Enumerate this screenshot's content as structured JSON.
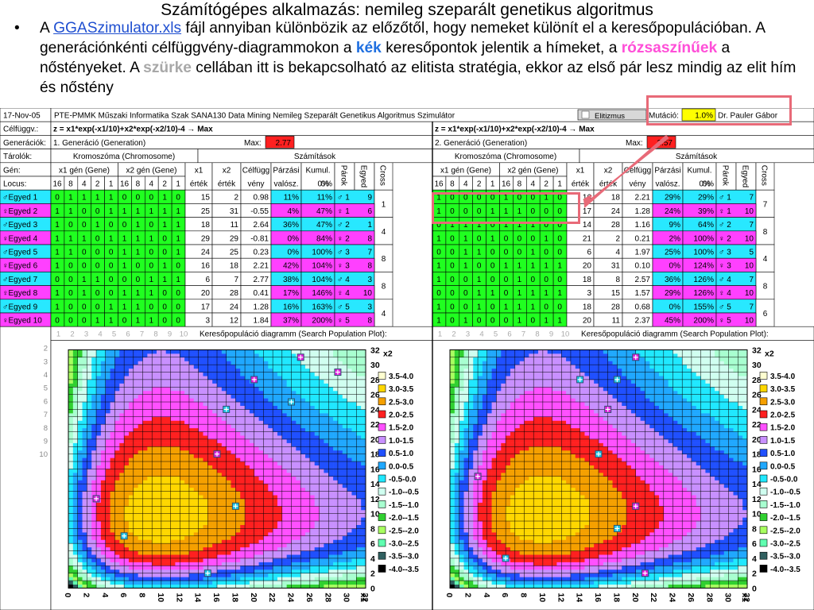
{
  "title": "Számítógépes alkalmazás: nemileg szeparált genetikus algoritmus",
  "bullet": {
    "dot": "•",
    "p1": "A ",
    "link": "GGASzimulator.xls",
    "p2": " fájl annyiban különbözik az előzőtől, hogy nemeket különít el a keresőpopulációban. A generációnkénti célfüggvény-diagrammokon a ",
    "blue": "kék",
    "p3": " keresőpontok jelentik a hímeket, a ",
    "pink": "rózsaszínűek",
    "p4": " a nőstényeket. A ",
    "grey": "szürke",
    "p5": " cellában itt is bekapcsolható az elitista stratégia, ekkor az első pár lesz mindig az elit hím és nőstény"
  },
  "sheet": {
    "date": "17-Nov-05",
    "header": "PTE-PMMK Műszaki Informatika Szak SANA130 Data Mining Nemileg Szeparált Genetikus Algoritmus Szimulátor",
    "elitizmus": "Elitizmus",
    "mutacio_label": "Mutáció:",
    "mutacio_value": "1.0%",
    "author": "Dr. Pauler Gábor",
    "celfuggv_label": "Célfüggv.:",
    "generaciok_label": "Generációk:",
    "tarolok_label": "Tárolók:",
    "gen_label": "Gén:",
    "locus_label": "Locus:",
    "formula": "z = x1*exp(-x1/10)+x2*exp(-x2/10)-4 → Max",
    "max_label": "Max:",
    "kromoszoma": "Kromoszóma (Chromosome)",
    "szamitasok": "Számítások",
    "x1gen": "x1 gén (Gene)",
    "x2gen": "x2 gén (Gene)",
    "cols": {
      "x1": "x1",
      "x2": "x2",
      "ertek": "érték",
      "celf": "Célfügg",
      "veny": "vény",
      "parzasi": "Párzási",
      "valosz": "valósz.",
      "kumul": "Kumul.",
      "kumul0": "0%",
      "parok": "Párok",
      "egyed": "Egyed",
      "cross": "Cross"
    },
    "locus": [
      "16",
      "8",
      "4",
      "2",
      "1",
      "16",
      "8",
      "4",
      "2",
      "1"
    ],
    "individuals": [
      "♂Egyed 1",
      "♀Egyed 2",
      "♂Egyed 3",
      "♀Egyed 4",
      "♂Egyed 5",
      "♀Egyed 6",
      "♂Egyed 7",
      "♀Egyed 8",
      "♂Egyed 9",
      "♀Egyed 10"
    ],
    "gens": [
      {
        "name": "1. Generáció (Generation)",
        "max": "2.77",
        "bits": [
          [
            0,
            1,
            1,
            1,
            1,
            0,
            0,
            0,
            1,
            0
          ],
          [
            1,
            1,
            0,
            0,
            1,
            1,
            1,
            1,
            1,
            1
          ],
          [
            1,
            0,
            0,
            1,
            0,
            0,
            1,
            0,
            1,
            1
          ],
          [
            1,
            1,
            1,
            0,
            1,
            1,
            1,
            1,
            0,
            1
          ],
          [
            1,
            1,
            0,
            0,
            0,
            1,
            1,
            0,
            0,
            1
          ],
          [
            1,
            0,
            0,
            0,
            0,
            1,
            0,
            0,
            1,
            0
          ],
          [
            0,
            0,
            1,
            1,
            0,
            0,
            0,
            1,
            1,
            1
          ],
          [
            1,
            0,
            1,
            0,
            0,
            1,
            1,
            1,
            0,
            0
          ],
          [
            1,
            0,
            0,
            0,
            1,
            1,
            1,
            0,
            0,
            0
          ],
          [
            0,
            0,
            0,
            1,
            1,
            0,
            1,
            1,
            0,
            0
          ]
        ],
        "x1": [
          "15",
          "25",
          "18",
          "29",
          "24",
          "16",
          "6",
          "20",
          "17",
          "3"
        ],
        "x2": [
          "2",
          "31",
          "11",
          "29",
          "25",
          "18",
          "7",
          "28",
          "24",
          "12"
        ],
        "f": [
          "0.98",
          "-0.55",
          "2.64",
          "-0.81",
          "0.23",
          "2.21",
          "2.77",
          "0.41",
          "1.28",
          "1.84"
        ],
        "p": [
          "11%",
          "4%",
          "36%",
          "0%",
          "0%",
          "42%",
          "38%",
          "17%",
          "16%",
          "37%"
        ],
        "k": [
          "11%",
          "47%",
          "47%",
          "84%",
          "100%",
          "104%",
          "104%",
          "146%",
          "163%",
          "200%"
        ],
        "pair": [
          "♂ 1",
          "♀ 1",
          "♂ 2",
          "♀ 2",
          "♂ 3",
          "♀ 3",
          "♂ 4",
          "♀ 4",
          "♂ 5",
          "♀ 5"
        ],
        "eg": [
          "9",
          "6",
          "1",
          "8",
          "7",
          "8",
          "3",
          "10",
          "3",
          "8"
        ],
        "cross": [
          "1",
          "4",
          "8",
          "8",
          "4"
        ]
      },
      {
        "name": "2. Generáció (Generation)",
        "max": "2.57",
        "bits": [
          [
            1,
            0,
            0,
            0,
            0,
            1,
            0,
            0,
            1,
            0
          ],
          [
            1,
            0,
            0,
            0,
            1,
            1,
            1,
            0,
            0,
            0
          ],
          [
            0,
            1,
            1,
            1,
            0,
            1,
            1,
            1,
            0,
            0
          ],
          [
            1,
            0,
            1,
            0,
            1,
            0,
            0,
            0,
            1,
            0
          ],
          [
            0,
            0,
            1,
            1,
            0,
            0,
            0,
            1,
            0,
            0
          ],
          [
            1,
            0,
            1,
            0,
            0,
            1,
            1,
            1,
            1,
            1
          ],
          [
            1,
            0,
            0,
            1,
            0,
            0,
            1,
            0,
            0,
            0
          ],
          [
            0,
            0,
            0,
            1,
            1,
            0,
            1,
            1,
            1,
            1
          ],
          [
            1,
            0,
            0,
            1,
            0,
            1,
            1,
            1,
            0,
            0
          ],
          [
            1,
            0,
            1,
            0,
            0,
            0,
            1,
            0,
            1,
            1
          ]
        ],
        "x1": [
          "16",
          "17",
          "14",
          "21",
          "6",
          "20",
          "18",
          "3",
          "18",
          "20"
        ],
        "x2": [
          "18",
          "24",
          "28",
          "2",
          "4",
          "31",
          "8",
          "15",
          "28",
          "11"
        ],
        "f": [
          "2.21",
          "1.28",
          "1.16",
          "0.21",
          "1.97",
          "0.10",
          "2.57",
          "1.57",
          "0.68",
          "2.37"
        ],
        "p": [
          "29%",
          "24%",
          "9%",
          "2%",
          "25%",
          "0%",
          "36%",
          "29%",
          "0%",
          "45%"
        ],
        "k": [
          "29%",
          "39%",
          "64%",
          "100%",
          "100%",
          "124%",
          "126%",
          "126%",
          "155%",
          "200%"
        ],
        "pair": [
          "♂ 1",
          "♀ 1",
          "♂ 2",
          "♀ 2",
          "♂ 3",
          "♀ 3",
          "♂ 4",
          "♀ 4",
          "♂ 5",
          "♀ 5"
        ],
        "eg": [
          "7",
          "10",
          "7",
          "10",
          "5",
          "10",
          "7",
          "10",
          "7",
          "10"
        ],
        "cross": [
          "7",
          "8",
          "4",
          "8",
          "6"
        ]
      }
    ],
    "plot_label": "Keresőpopuláció diagramm (Search Population Plot):",
    "row_numbers": [
      "1",
      "2",
      "3",
      "4",
      "5",
      "6",
      "7",
      "8",
      "9",
      "10"
    ],
    "plot_ticks": [
      "0",
      "2",
      "4",
      "6",
      "8",
      "10",
      "12",
      "14",
      "16",
      "18",
      "20",
      "22",
      "24",
      "26",
      "28",
      "30",
      "32"
    ],
    "axis_x1": "x1",
    "axis_x2": "x2",
    "legend": [
      "3.5-4.0",
      "3.0-3.5",
      "2.5-3.0",
      "2.0-2.5",
      "1.5-2.0",
      "1.0-1.5",
      "0.5-1.0",
      "0.0-0.5",
      "-0.5-0.0",
      "-1.0--0.5",
      "-1.5--1.0",
      "-2.0--1.5",
      "-2.5--2.0",
      "-3.0--2.5",
      "-3.5--3.0",
      "-4.0--3.5"
    ],
    "legend_colors": [
      "#ffffd0",
      "#ffd700",
      "#f5a000",
      "#ff2020",
      "#ff50ff",
      "#c890ff",
      "#2050ff",
      "#20a8ff",
      "#20e8ff",
      "#d0fff0",
      "#a8ffd0",
      "#30d030",
      "#a8ff60",
      "#60ffb0",
      "#306060",
      "#000000"
    ]
  }
}
